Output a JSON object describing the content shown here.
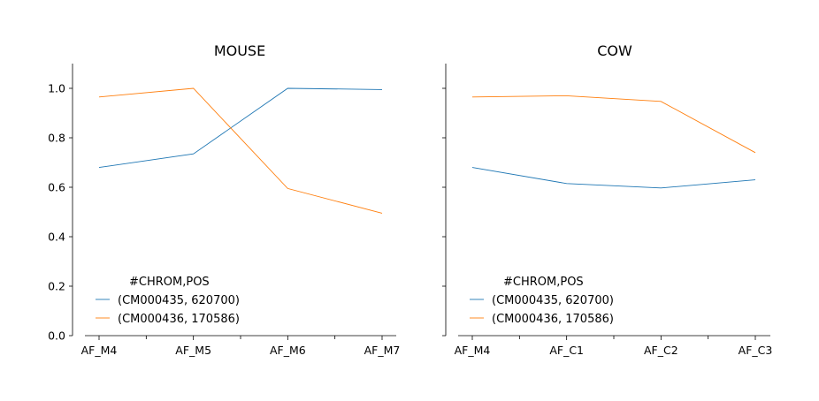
{
  "colors": {
    "series_1": "#1f77b4",
    "series_2": "#ff7f0e"
  },
  "chart_data": [
    {
      "type": "line",
      "title": "MOUSE",
      "categories": [
        "AF_M4",
        "AF_M5",
        "AF_M6",
        "AF_M7"
      ],
      "ylim": [
        0,
        1.1
      ],
      "yticks": [
        "0.0",
        "0.2",
        "0.4",
        "0.6",
        "0.8",
        "1.0"
      ],
      "legend": {
        "title": "#CHROM,POS",
        "placement": "lower-left"
      },
      "series": [
        {
          "name": "(CM000435, 620700)",
          "values": [
            0.68,
            0.735,
            1.0,
            0.995
          ]
        },
        {
          "name": "(CM000436, 170586)",
          "values": [
            0.965,
            1.0,
            0.595,
            0.495
          ]
        }
      ]
    },
    {
      "type": "line",
      "title": "COW",
      "categories": [
        "AF_M4",
        "AF_C1",
        "AF_C2",
        "AF_C3"
      ],
      "ylim": [
        0,
        1.1
      ],
      "yticks": [
        "0.0",
        "0.2",
        "0.4",
        "0.6",
        "0.8",
        "1.0"
      ],
      "legend": {
        "title": "#CHROM,POS",
        "placement": "lower-left"
      },
      "series": [
        {
          "name": "(CM000435, 620700)",
          "values": [
            0.68,
            0.615,
            0.597,
            0.63
          ]
        },
        {
          "name": "(CM000436, 170586)",
          "values": [
            0.965,
            0.97,
            0.947,
            0.74
          ]
        }
      ]
    }
  ]
}
